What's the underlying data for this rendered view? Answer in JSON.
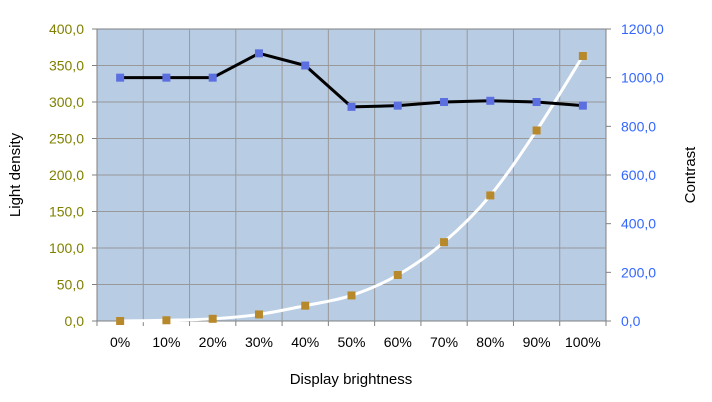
{
  "chart_data": {
    "type": "line",
    "title": "",
    "xlabel": "Display brightness",
    "ylabel_left": "Light density",
    "ylabel_right": "Contrast",
    "categories": [
      "0%",
      "10%",
      "20%",
      "30%",
      "40%",
      "50%",
      "60%",
      "70%",
      "80%",
      "90%",
      "100%"
    ],
    "ylim_left": [
      0,
      400
    ],
    "ylim_right": [
      0,
      1200
    ],
    "yticks_left": [
      "0,0",
      "50,0",
      "100,0",
      "150,0",
      "200,0",
      "250,0",
      "300,0",
      "350,0",
      "400,0"
    ],
    "yticks_right": [
      "0,0",
      "200,0",
      "400,0",
      "600,0",
      "800,0",
      "1000,0",
      "1200,0"
    ],
    "grid": true,
    "colors": {
      "plot_background": "#b8cce4",
      "grid": "#999999",
      "left_tick_text": "#808000",
      "right_tick_text": "#3366ff",
      "contrast_line": "#000000",
      "contrast_marker": "#5b6fe0",
      "density_line": "#ffffff",
      "density_marker": "#b8892b"
    },
    "series": [
      {
        "axis": "right",
        "values": [
          1000,
          1000,
          1000,
          1100,
          1050,
          880,
          885,
          900,
          905,
          900,
          885
        ]
      },
      {
        "axis": "left",
        "values": [
          0,
          1,
          3,
          9,
          21,
          35,
          63,
          108,
          172,
          261,
          363
        ]
      }
    ]
  }
}
